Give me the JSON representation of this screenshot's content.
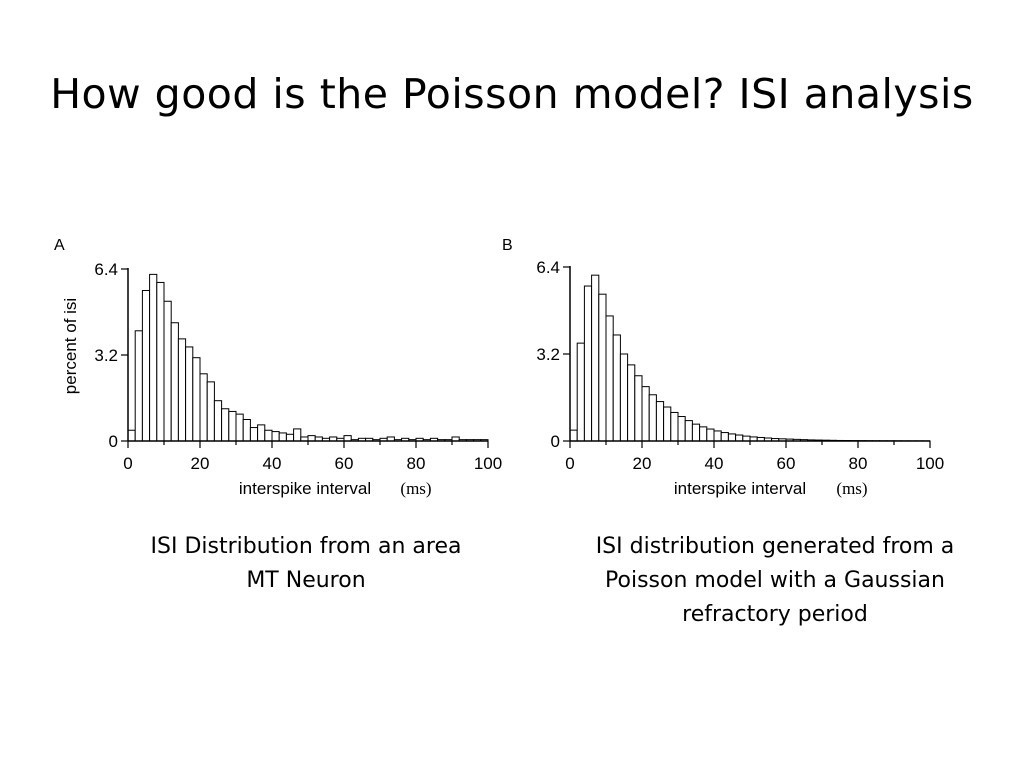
{
  "slide": {
    "title": "How good is the Poisson model? ISI analysis",
    "caption_a": "ISI Distribution from an area MT Neuron",
    "caption_b": "ISI distribution generated from a Poisson model with a Gaussian refractory period"
  },
  "chart_data": [
    {
      "type": "bar",
      "panel_label": "A",
      "xlabel": "interspike interval",
      "xunit": "(ms)",
      "ylabel": "percent of isi",
      "xlim": [
        0,
        100
      ],
      "ylim": [
        0,
        6.4
      ],
      "xticks": [
        0,
        20,
        40,
        60,
        80,
        100
      ],
      "yticks": [
        0,
        3.2,
        6.4
      ],
      "bin_width": 2,
      "x": [
        1,
        3,
        5,
        7,
        9,
        11,
        13,
        15,
        17,
        19,
        21,
        23,
        25,
        27,
        29,
        31,
        33,
        35,
        37,
        39,
        41,
        43,
        45,
        47,
        49,
        51,
        53,
        55,
        57,
        59,
        61,
        63,
        65,
        67,
        69,
        71,
        73,
        75,
        77,
        79,
        81,
        83,
        85,
        87,
        89,
        91,
        93,
        95,
        97,
        99
      ],
      "values": [
        0.4,
        4.1,
        5.6,
        6.2,
        5.9,
        5.2,
        4.4,
        3.8,
        3.5,
        3.1,
        2.5,
        2.2,
        1.5,
        1.2,
        1.1,
        1.0,
        0.8,
        0.5,
        0.6,
        0.4,
        0.35,
        0.3,
        0.25,
        0.45,
        0.15,
        0.2,
        0.15,
        0.1,
        0.15,
        0.1,
        0.2,
        0.05,
        0.1,
        0.1,
        0.05,
        0.1,
        0.15,
        0.05,
        0.1,
        0.05,
        0.1,
        0.05,
        0.1,
        0.05,
        0.05,
        0.15,
        0.05,
        0.05,
        0.05,
        0.05
      ]
    },
    {
      "type": "bar",
      "panel_label": "B",
      "xlabel": "interspike interval",
      "xunit": "(ms)",
      "ylabel": "",
      "xlim": [
        0,
        100
      ],
      "ylim": [
        0,
        6.4
      ],
      "xticks": [
        0,
        20,
        40,
        60,
        80,
        100
      ],
      "yticks": [
        0,
        3.2,
        6.4
      ],
      "bin_width": 2,
      "x": [
        1,
        3,
        5,
        7,
        9,
        11,
        13,
        15,
        17,
        19,
        21,
        23,
        25,
        27,
        29,
        31,
        33,
        35,
        37,
        39,
        41,
        43,
        45,
        47,
        49,
        51,
        53,
        55,
        57,
        59,
        61,
        63,
        65,
        67,
        69,
        71,
        73,
        75,
        77,
        79,
        81,
        83,
        85,
        87,
        89,
        91,
        93,
        95,
        97,
        99
      ],
      "values": [
        0.4,
        3.6,
        5.7,
        6.1,
        5.4,
        4.6,
        3.9,
        3.2,
        2.8,
        2.4,
        2.0,
        1.7,
        1.45,
        1.25,
        1.05,
        0.9,
        0.75,
        0.62,
        0.52,
        0.44,
        0.37,
        0.31,
        0.26,
        0.22,
        0.18,
        0.15,
        0.13,
        0.11,
        0.09,
        0.08,
        0.07,
        0.06,
        0.05,
        0.04,
        0.035,
        0.03,
        0.025,
        0.02,
        0.018,
        0.015,
        0.013,
        0.011,
        0.01,
        0.009,
        0.008,
        0.007,
        0.006,
        0.005,
        0.005,
        0.004
      ]
    }
  ]
}
